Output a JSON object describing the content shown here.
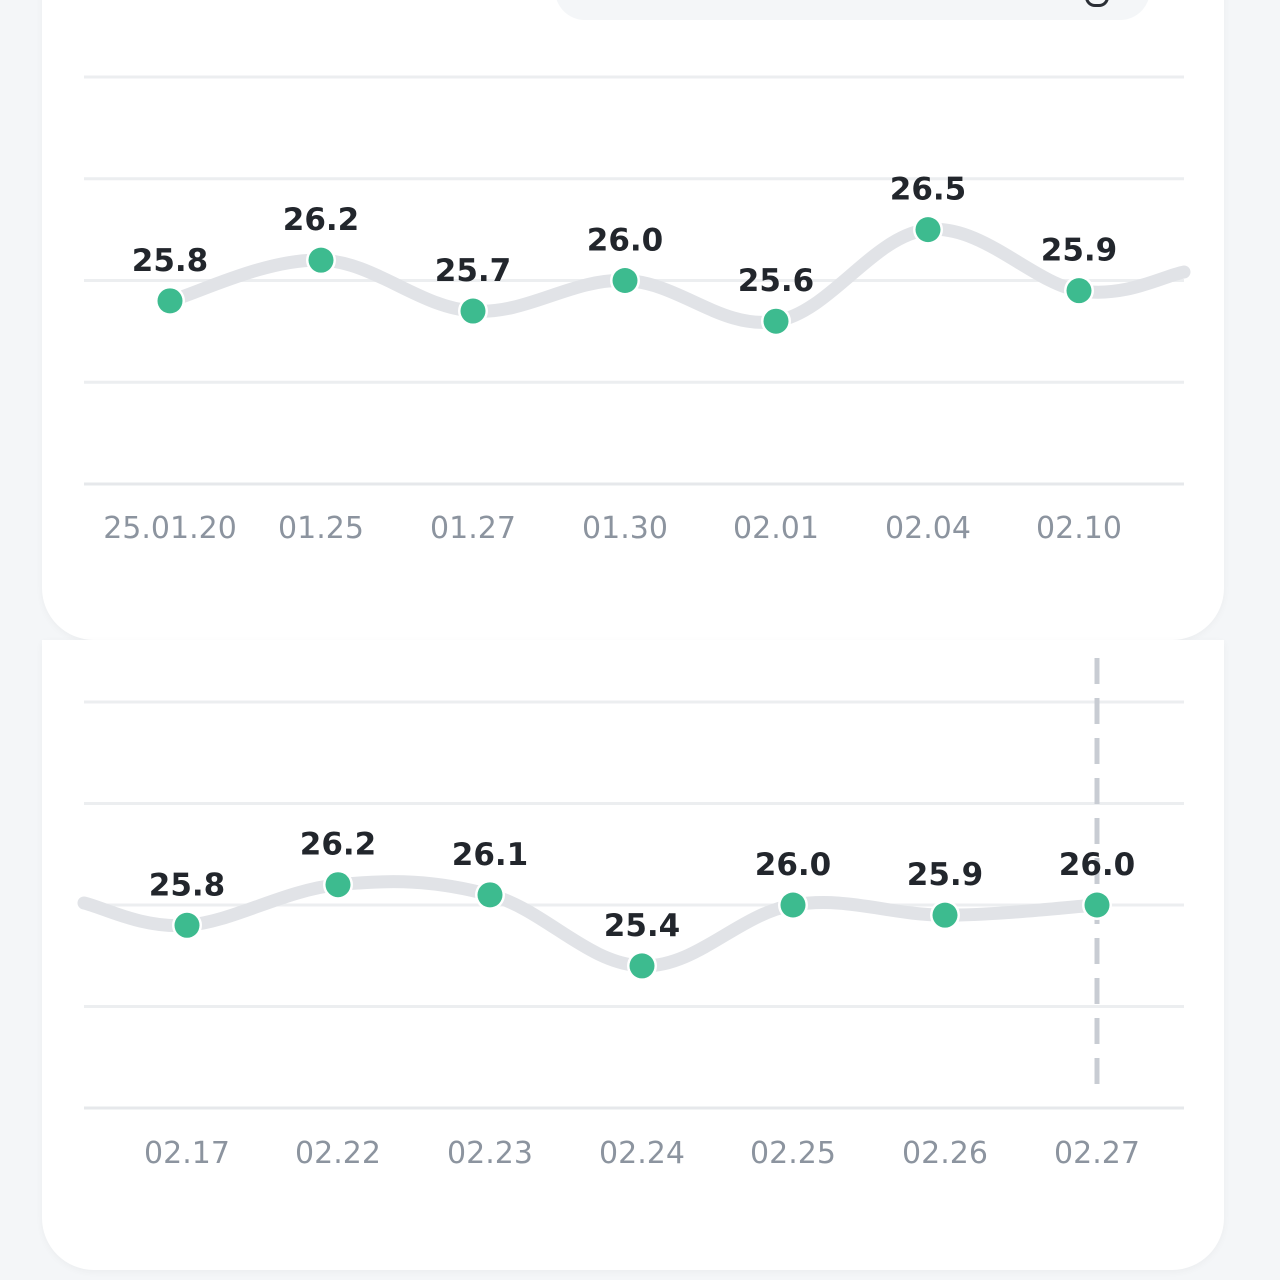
{
  "chart_data": [
    {
      "type": "line",
      "categories": [
        "25.01.20",
        "01.25",
        "01.27",
        "01.30",
        "02.01",
        "02.04",
        "02.10"
      ],
      "values": [
        25.8,
        26.2,
        25.7,
        26.0,
        25.6,
        26.5,
        25.9
      ],
      "ylim": [
        24,
        28
      ],
      "grid": true,
      "line_color": "#e1e3e7",
      "point_color": "#3dbb8f"
    },
    {
      "type": "line",
      "categories": [
        "02.17",
        "02.22",
        "02.23",
        "02.24",
        "02.25",
        "02.26",
        "02.27"
      ],
      "values": [
        25.8,
        26.2,
        26.1,
        25.4,
        26.0,
        25.9,
        26.0
      ],
      "ylim": [
        24,
        28
      ],
      "grid": true,
      "highlight": "02.27",
      "line_color": "#e1e3e7",
      "point_color": "#3dbb8f"
    }
  ]
}
